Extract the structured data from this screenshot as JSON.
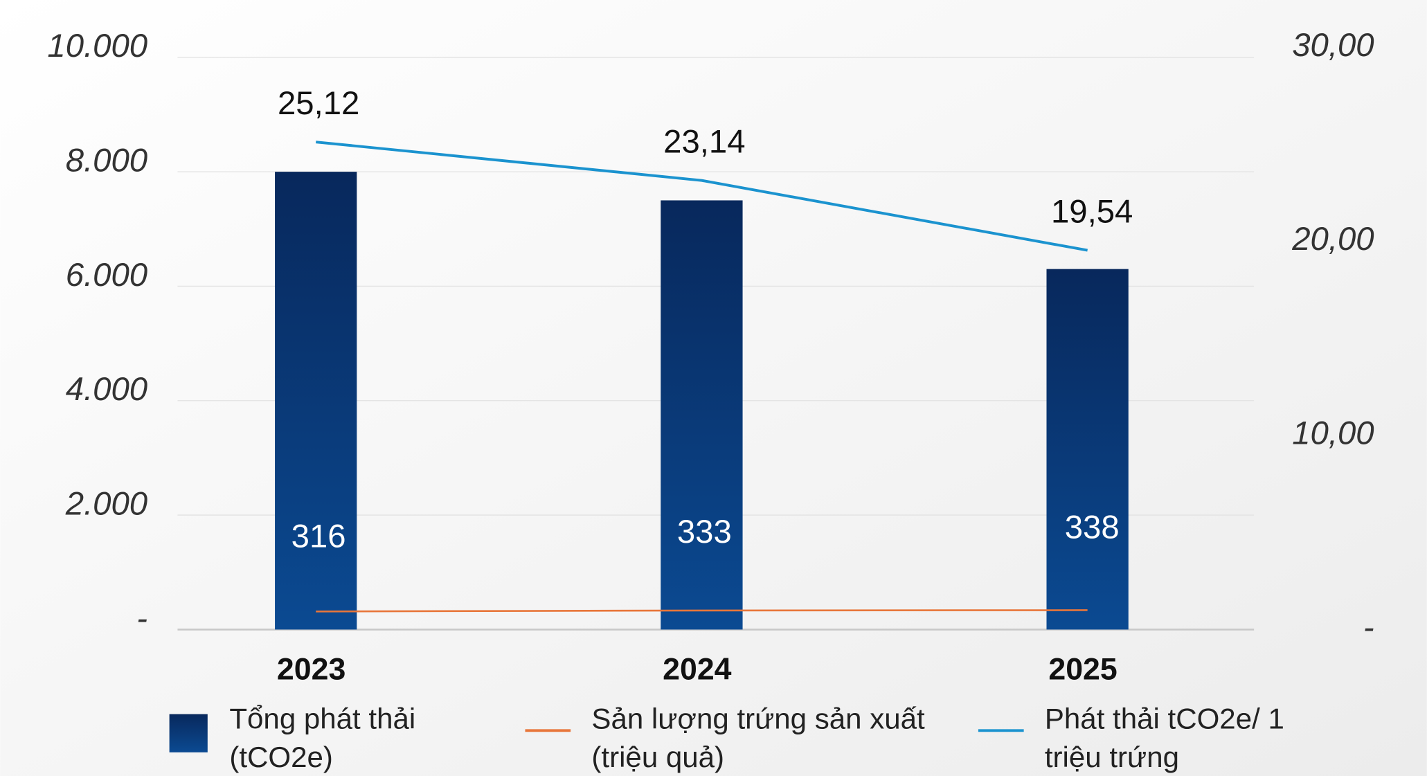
{
  "chart_data": {
    "type": "bar",
    "categories": [
      "2023",
      "2024",
      "2025"
    ],
    "series": [
      {
        "name": "Tổng phát thải (tCO2e)",
        "type": "bar",
        "color": "#0a3a7a",
        "values": [
          8000,
          7500,
          6300
        ]
      },
      {
        "name": "Sản lượng trứng sản xuất (triệu quả)",
        "type": "line",
        "color": "#e8763a",
        "values": [
          316,
          333,
          338
        ]
      },
      {
        "name": "Phát thải tCO2e/ 1 triệu trứng",
        "type": "line",
        "color": "#1b93cf",
        "axis": "y2",
        "values": [
          25.12,
          23.14,
          19.54
        ],
        "value_labels": [
          "25,12",
          "23,14",
          "19,54"
        ]
      }
    ],
    "ylim": [
      0,
      10000
    ],
    "yticks": [
      {
        "value": 0,
        "label": "-"
      },
      {
        "value": 2000,
        "label": "2.000"
      },
      {
        "value": 4000,
        "label": "4.000"
      },
      {
        "value": 6000,
        "label": "6.000"
      },
      {
        "value": 8000,
        "label": "8.000"
      },
      {
        "value": 10000,
        "label": "10.000"
      }
    ],
    "y2lim": [
      0,
      30
    ],
    "y2ticks": [
      {
        "value": 0,
        "label": "-"
      },
      {
        "value": 10,
        "label": "10,00"
      },
      {
        "value": 20,
        "label": "20,00"
      },
      {
        "value": 30,
        "label": "30,00"
      }
    ],
    "grid": true,
    "legend": "bottom"
  }
}
